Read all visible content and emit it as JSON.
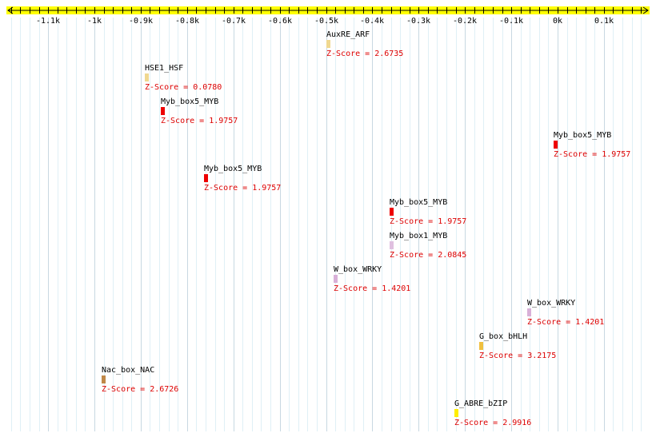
{
  "axis": {
    "min": -1.19,
    "max": 0.2,
    "unit_step": 0.1,
    "minor_step": 0.02,
    "ticks": [
      {
        "value": -1.1,
        "label": "-1.1k"
      },
      {
        "value": -1.0,
        "label": "-1k"
      },
      {
        "value": -0.9,
        "label": "-0.9k"
      },
      {
        "value": -0.8,
        "label": "-0.8k"
      },
      {
        "value": -0.7,
        "label": "-0.7k"
      },
      {
        "value": -0.6,
        "label": "-0.6k"
      },
      {
        "value": -0.5,
        "label": "-0.5k"
      },
      {
        "value": -0.4,
        "label": "-0.4k"
      },
      {
        "value": -0.3,
        "label": "-0.3k"
      },
      {
        "value": -0.2,
        "label": "-0.2k"
      },
      {
        "value": -0.1,
        "label": "-0.1k"
      },
      {
        "value": 0.0,
        "label": "0k"
      },
      {
        "value": 0.1,
        "label": "0.1k"
      }
    ],
    "bar_color": "#ffff00"
  },
  "sites": [
    {
      "name": "AuxRE_ARF",
      "z": "Z-Score = 2.6735",
      "pos": -0.5,
      "row": 0,
      "color": "#f0d890"
    },
    {
      "name": "HSE1_HSF",
      "z": "Z-Score = 0.0780",
      "pos": -0.892,
      "row": 1,
      "color": "#f0d890"
    },
    {
      "name": "Myb_box5_MYB",
      "z": "Z-Score = 1.9757",
      "pos": -0.857,
      "row": 2,
      "color": "#ee0000"
    },
    {
      "name": "Myb_box5_MYB",
      "z": "Z-Score = 1.9757",
      "pos": -0.008,
      "row": 3,
      "color": "#ee0000"
    },
    {
      "name": "Myb_box5_MYB",
      "z": "Z-Score = 1.9757",
      "pos": -0.764,
      "row": 4,
      "color": "#ee0000"
    },
    {
      "name": "Myb_box5_MYB",
      "z": "Z-Score = 1.9757",
      "pos": -0.362,
      "row": 5,
      "color": "#ee0000"
    },
    {
      "name": "Myb_box1_MYB",
      "z": "Z-Score = 2.0845",
      "pos": -0.362,
      "row": 6,
      "color": "#e0c0e0"
    },
    {
      "name": "W_box_WRKY",
      "z": "Z-Score = 1.4201",
      "pos": -0.484,
      "row": 7,
      "color": "#d8b0d8"
    },
    {
      "name": "W_box_WRKY",
      "z": "Z-Score = 1.4201",
      "pos": -0.066,
      "row": 8,
      "color": "#d8b0d8"
    },
    {
      "name": "G_box_bHLH",
      "z": "Z-Score = 3.2175",
      "pos": -0.17,
      "row": 9,
      "color": "#f0c040"
    },
    {
      "name": "Nac_box_NAC",
      "z": "Z-Score = 2.6726",
      "pos": -0.985,
      "row": 10,
      "color": "#c08848"
    },
    {
      "name": "G_ABRE_bZIP",
      "z": "Z-Score = 2.9916",
      "pos": -0.222,
      "row": 11,
      "color": "#ffee00"
    }
  ]
}
